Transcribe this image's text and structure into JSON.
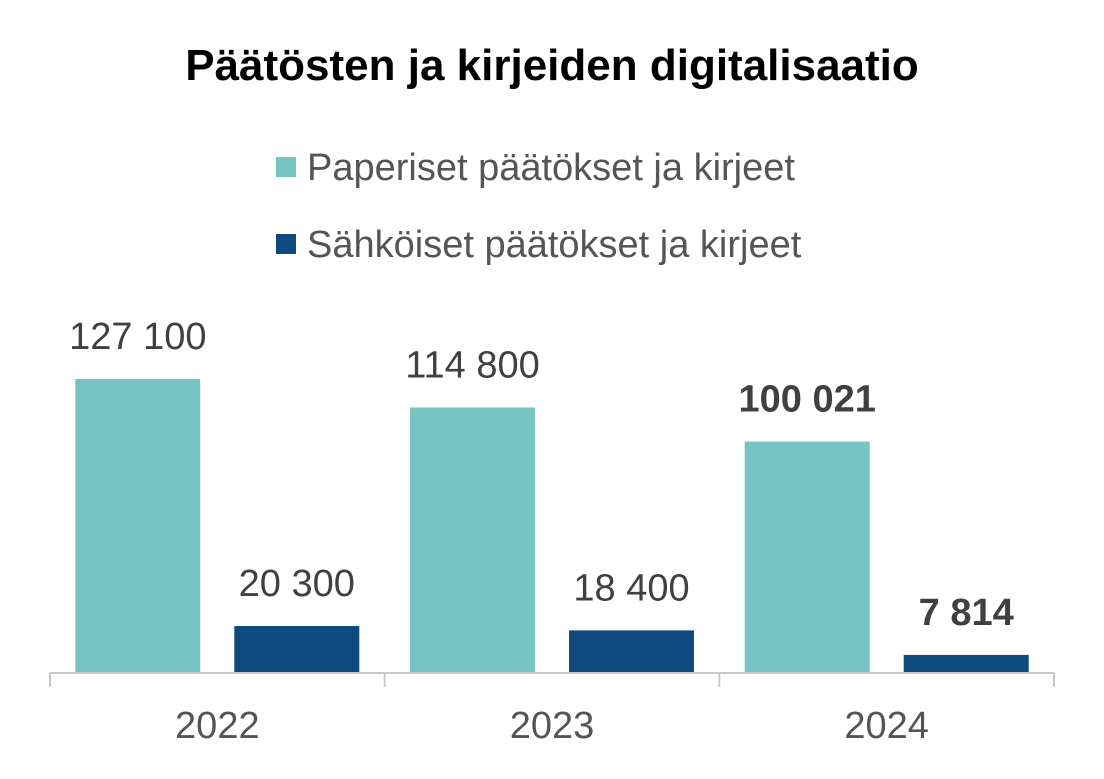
{
  "chart_data": {
    "type": "bar",
    "title": "Päätösten ja kirjeiden digitalisaatio",
    "categories": [
      "2022",
      "2023",
      "2024"
    ],
    "series": [
      {
        "name": "Paperiset päätökset ja kirjeet",
        "color": "#76c4c4",
        "values": [
          127100,
          114800,
          100021
        ],
        "labels": [
          "127 100",
          "114 800",
          "100 021"
        ]
      },
      {
        "name": "Sähköiset päätökset ja kirjeet",
        "color": "#0e4a7e",
        "values": [
          20300,
          18400,
          7814
        ],
        "labels": [
          "20 300",
          "18 400",
          "7 814"
        ]
      }
    ],
    "bold_category": "2024",
    "ylim": [
      0,
      127100
    ],
    "grid": false,
    "legend_position": "top"
  }
}
